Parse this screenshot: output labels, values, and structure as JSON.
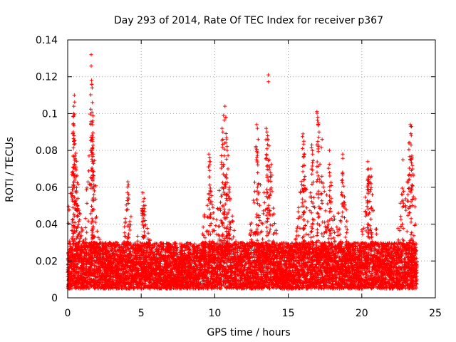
{
  "chart_data": {
    "type": "scatter",
    "title": "Day 293 of 2014, Rate Of TEC Index for receiver p367",
    "xlabel": "GPS time / hours",
    "ylabel": "ROTI / TECUs",
    "xlim": [
      0,
      25
    ],
    "ylim": [
      0,
      0.14
    ],
    "xticks": [
      0,
      5,
      10,
      15,
      20,
      25
    ],
    "yticks": [
      0,
      0.02,
      0.04,
      0.06,
      0.08,
      0.1,
      0.12,
      0.14
    ],
    "xtick_labels": [
      "0",
      "5",
      "10",
      "15",
      "20",
      "25"
    ],
    "ytick_labels": [
      "0",
      "0.02",
      "0.04",
      "0.06",
      "0.08",
      "0.1",
      "0.12",
      "0.14"
    ],
    "grid": true,
    "marker": "+",
    "color": "#ff0000",
    "series": [
      {
        "name": "ROTI",
        "x_range": [
          0,
          23.75
        ],
        "baseline": [
          0.005,
          0.03
        ],
        "peak_points": [
          [
            0.3,
            0.068
          ],
          [
            0.35,
            0.089
          ],
          [
            0.38,
            0.094
          ],
          [
            0.4,
            0.1
          ],
          [
            0.42,
            0.104
          ],
          [
            0.45,
            0.11
          ],
          [
            0.5,
            0.077
          ],
          [
            0.55,
            0.071
          ],
          [
            0.6,
            0.058
          ],
          [
            0.7,
            0.054
          ],
          [
            0.8,
            0.046
          ],
          [
            1.6,
            0.132
          ],
          [
            1.62,
            0.118
          ],
          [
            1.64,
            0.116
          ],
          [
            1.66,
            0.114
          ],
          [
            1.68,
            0.106
          ],
          [
            1.7,
            0.096
          ],
          [
            1.72,
            0.087
          ],
          [
            1.74,
            0.078
          ],
          [
            1.76,
            0.073
          ],
          [
            4.1,
            0.063
          ],
          [
            4.15,
            0.056
          ],
          [
            5.1,
            0.057
          ],
          [
            5.2,
            0.054
          ],
          [
            9.6,
            0.078
          ],
          [
            9.65,
            0.076
          ],
          [
            9.7,
            0.074
          ],
          [
            10.5,
            0.092
          ],
          [
            10.55,
            0.09
          ],
          [
            10.6,
            0.099
          ],
          [
            10.7,
            0.104
          ],
          [
            10.75,
            0.098
          ],
          [
            10.8,
            0.087
          ],
          [
            10.85,
            0.08
          ],
          [
            10.9,
            0.07
          ],
          [
            11.0,
            0.06
          ],
          [
            12.85,
            0.094
          ],
          [
            12.9,
            0.092
          ],
          [
            12.95,
            0.086
          ],
          [
            13.5,
            0.092
          ],
          [
            13.55,
            0.09
          ],
          [
            13.6,
            0.088
          ],
          [
            13.65,
            0.121
          ],
          [
            13.7,
            0.075
          ],
          [
            13.8,
            0.068
          ],
          [
            16.0,
            0.089
          ],
          [
            16.05,
            0.085
          ],
          [
            16.1,
            0.078
          ],
          [
            16.6,
            0.083
          ],
          [
            16.65,
            0.078
          ],
          [
            16.95,
            0.101
          ],
          [
            17.0,
            0.098
          ],
          [
            17.05,
            0.095
          ],
          [
            17.1,
            0.09
          ],
          [
            17.3,
            0.086
          ],
          [
            17.8,
            0.08
          ],
          [
            18.7,
            0.078
          ],
          [
            20.4,
            0.074
          ],
          [
            20.45,
            0.07
          ],
          [
            20.5,
            0.066
          ],
          [
            20.6,
            0.07
          ],
          [
            20.65,
            0.066
          ],
          [
            22.8,
            0.075
          ],
          [
            23.2,
            0.084
          ],
          [
            23.3,
            0.094
          ],
          [
            23.35,
            0.093
          ],
          [
            23.4,
            0.077
          ],
          [
            23.45,
            0.07
          ]
        ]
      }
    ]
  }
}
